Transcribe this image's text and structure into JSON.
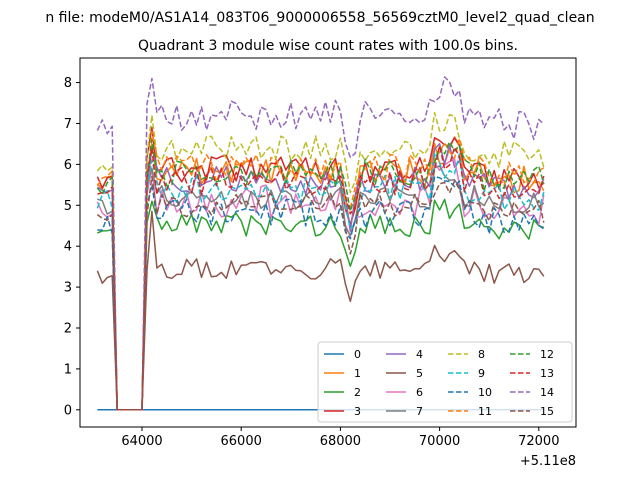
{
  "figure": {
    "suptitle": "n file: modeM0/AS1A14_083T06_9000006558_56569cztM0_level2_quad_clean",
    "title": "Quadrant 3 module wise count rates with 100.0s bins."
  },
  "chart_data": {
    "type": "line",
    "title": "Quadrant 3 module wise count rates with 100.0s bins.",
    "xlabel": "",
    "ylabel": "",
    "x_offset_label": "+5.11e8",
    "xlim": [
      62750,
      72750
    ],
    "ylim": [
      -0.42,
      8.6
    ],
    "xticks": [
      64000,
      66000,
      68000,
      70000,
      72000
    ],
    "xtick_labels": [
      "64000",
      "66000",
      "68000",
      "70000",
      "72000"
    ],
    "yticks": [
      0,
      1,
      2,
      3,
      4,
      5,
      6,
      7,
      8
    ],
    "ytick_labels": [
      "0",
      "1",
      "2",
      "3",
      "4",
      "5",
      "6",
      "7",
      "8"
    ],
    "grid": false,
    "legend": {
      "placement": "lower-right",
      "columns": 4
    },
    "x_start": 63100,
    "x_step": 100,
    "series": [
      {
        "name": "0",
        "color": "#1f77b4",
        "dash": "solid",
        "level": 0.0,
        "amp": 0.0,
        "dip": 0.0,
        "spike": 0.0,
        "seed": 1
      },
      {
        "name": "1",
        "color": "#ff7f0e",
        "dash": "solid",
        "level": 5.8,
        "amp": 0.35,
        "dip": 1.2,
        "spike": 0.7,
        "seed": 2
      },
      {
        "name": "2",
        "color": "#2ca02c",
        "dash": "solid",
        "level": 4.5,
        "amp": 0.3,
        "dip": 0.9,
        "spike": 0.6,
        "seed": 3
      },
      {
        "name": "3",
        "color": "#d62728",
        "dash": "solid",
        "level": 5.9,
        "amp": 0.35,
        "dip": 1.3,
        "spike": 1.0,
        "seed": 4
      },
      {
        "name": "4",
        "color": "#9467bd",
        "dash": "solid",
        "level": 5.6,
        "amp": 0.35,
        "dip": 1.2,
        "spike": 0.8,
        "seed": 5
      },
      {
        "name": "5",
        "color": "#8c564b",
        "dash": "solid",
        "level": 3.45,
        "amp": 0.25,
        "dip": 0.8,
        "spike": 1.4,
        "seed": 6
      },
      {
        "name": "6",
        "color": "#e377c2",
        "dash": "solid",
        "level": 5.1,
        "amp": 0.4,
        "dip": 0.9,
        "spike": 0.8,
        "seed": 7
      },
      {
        "name": "7",
        "color": "#7f7f7f",
        "dash": "solid",
        "level": 5.2,
        "amp": 0.3,
        "dip": 1.0,
        "spike": 0.7,
        "seed": 8
      },
      {
        "name": "8",
        "color": "#bcbd22",
        "dash": "dashed",
        "level": 6.4,
        "amp": 0.35,
        "dip": 1.2,
        "spike": 0.8,
        "seed": 9
      },
      {
        "name": "9",
        "color": "#17becf",
        "dash": "dashed",
        "level": 5.4,
        "amp": 0.35,
        "dip": 1.1,
        "spike": 0.7,
        "seed": 10
      },
      {
        "name": "10",
        "color": "#1f77b4",
        "dash": "dashed",
        "level": 4.8,
        "amp": 0.35,
        "dip": 0.8,
        "spike": 0.7,
        "seed": 11
      },
      {
        "name": "11",
        "color": "#ff7f0e",
        "dash": "dashed",
        "level": 5.9,
        "amp": 0.35,
        "dip": 1.2,
        "spike": 0.9,
        "seed": 12
      },
      {
        "name": "12",
        "color": "#2ca02c",
        "dash": "dashed",
        "level": 5.8,
        "amp": 0.35,
        "dip": 1.2,
        "spike": 0.8,
        "seed": 13
      },
      {
        "name": "13",
        "color": "#d62728",
        "dash": "dashed",
        "level": 5.6,
        "amp": 0.35,
        "dip": 1.1,
        "spike": 0.8,
        "seed": 14
      },
      {
        "name": "14",
        "color": "#9467bd",
        "dash": "dashed",
        "level": 7.2,
        "amp": 0.4,
        "dip": 1.4,
        "spike": 0.9,
        "seed": 15
      },
      {
        "name": "15",
        "color": "#8c564b",
        "dash": "dashed",
        "level": 5.0,
        "amp": 0.3,
        "dip": 0.9,
        "spike": 0.7,
        "seed": 16
      }
    ]
  }
}
